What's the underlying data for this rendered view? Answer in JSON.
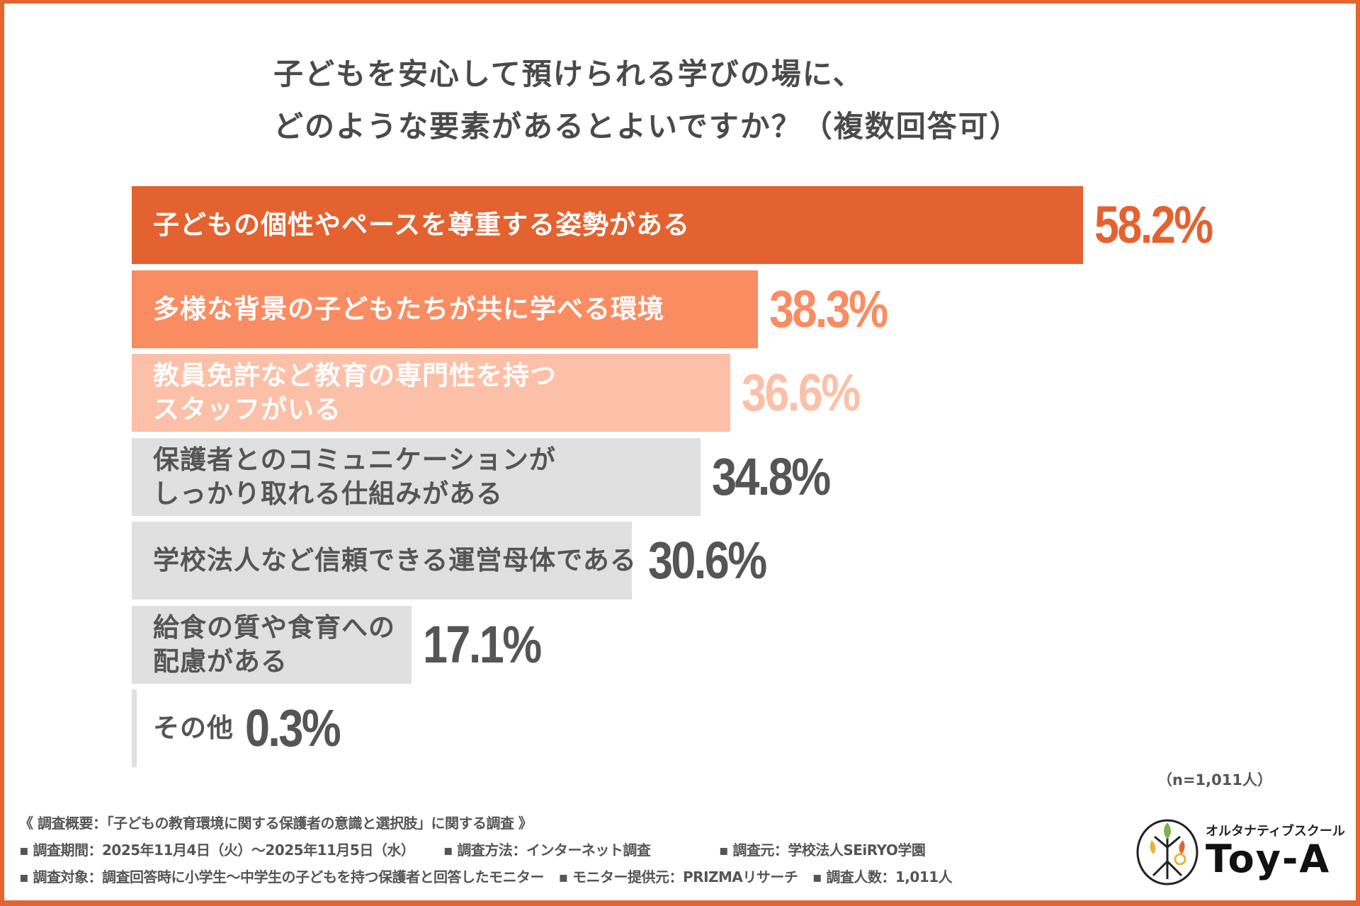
{
  "title_lines": [
    "子どもを安心して預けられる学びの場に、",
    "どのような要素があるとよいですか？（複数回答可）"
  ],
  "chart_data": {
    "type": "bar",
    "orientation": "horizontal",
    "title": "子どもを安心して預けられる学びの場に、どのような要素があるとよいですか？（複数回答可）",
    "categories": [
      [
        "子どもの個性やペースを尊重する姿勢がある"
      ],
      [
        "多様な背景の子どもたちが共に学べる環境"
      ],
      [
        "教員免許など教育の専門性を持つ",
        "スタッフがいる"
      ],
      [
        "保護者とのコミュニケーションが",
        "しっかり取れる仕組みがある"
      ],
      [
        "学校法人など信頼できる運営母体である"
      ],
      [
        "給食の質や食育への",
        "配慮がある"
      ],
      [
        "その他"
      ]
    ],
    "values": [
      58.2,
      38.3,
      36.6,
      34.8,
      30.6,
      17.1,
      0.3
    ],
    "labels": [
      "58.2%",
      "38.3%",
      "36.6%",
      "34.8%",
      "30.6%",
      "17.1%",
      "0.3%"
    ],
    "colors": [
      "#E4622F",
      "#FA8C62",
      "#FCC0A8",
      "#E0E0E0",
      "#E0E0E0",
      "#E0E0E0",
      "#E0E0E0"
    ],
    "label_colors": [
      "#FFFFFF",
      "#FFFFFF",
      "#FFFFFF",
      "#555555",
      "#555555",
      "#555555",
      "#555555"
    ],
    "value_colors": [
      "#E4622F",
      "#FA8C62",
      "#FCC0A8",
      "#555555",
      "#555555",
      "#555555",
      "#555555"
    ],
    "grid": false,
    "legend": "none"
  },
  "sample_note": "（n=1,011人）",
  "footer": {
    "summary": "《 調査概要：「子どもの教育環境に関する保護者の意識と選択肢」に関する調査 》",
    "line2": [
      "▪ 調査期間：2025年11月4日（火）〜2025年11月5日（水）",
      "▪ 調査方法：インターネット調査",
      "▪ 調査元：学校法人SEiRYO学園"
    ],
    "line3": [
      "▪ 調査対象：調査回答時に小学生〜中学生の子どもを持つ保護者と回答したモニター",
      "▪ モニター提供元：PRIZMAリサーチ",
      "▪ 調査人数：1,011人"
    ]
  },
  "logo": {
    "tagline": "オルタナティブスクール",
    "name": "Toy-A"
  }
}
